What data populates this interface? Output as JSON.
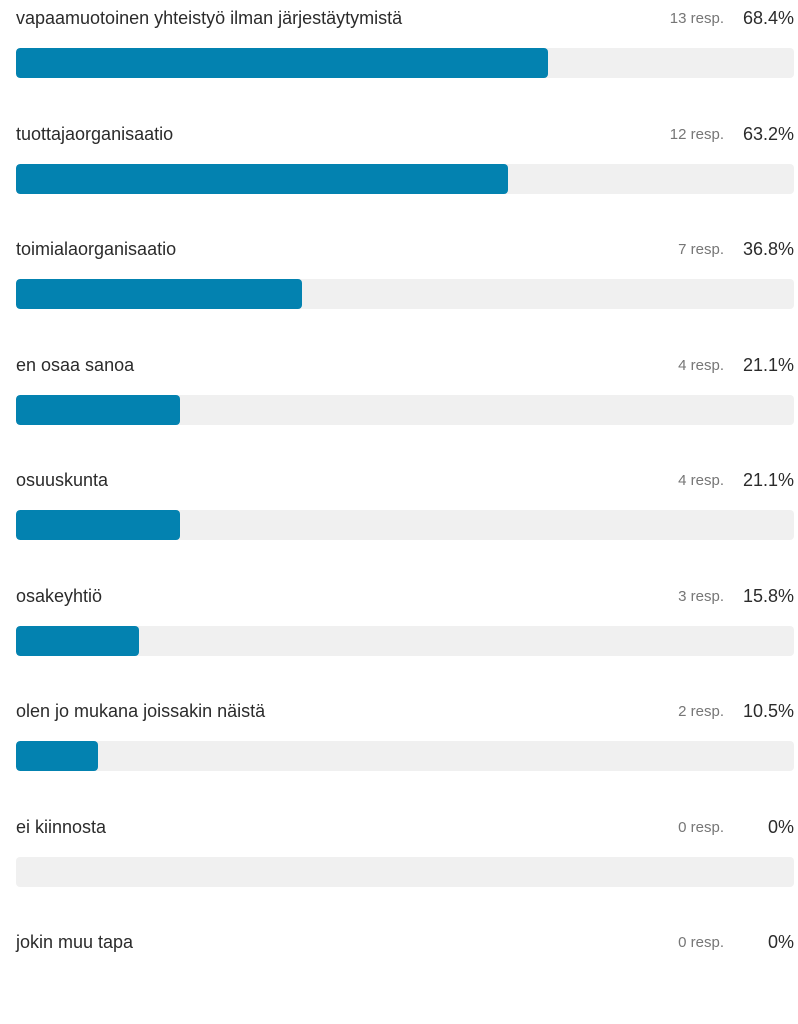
{
  "chart_data": {
    "type": "bar",
    "orientation": "horizontal",
    "bar_color": "#0382b0",
    "track_color": "#f0f0f0",
    "xlim": [
      0,
      100
    ],
    "options": [
      {
        "label": "vapaamuotoinen yhteistyö ilman järjestäytymistä",
        "responses": "13 resp.",
        "percent_label": "68.4%",
        "value": 68.4,
        "show_bar": true
      },
      {
        "label": "tuottajaorganisaatio",
        "responses": "12 resp.",
        "percent_label": "63.2%",
        "value": 63.2,
        "show_bar": true
      },
      {
        "label": "toimialaorganisaatio",
        "responses": "7 resp.",
        "percent_label": "36.8%",
        "value": 36.8,
        "show_bar": true
      },
      {
        "label": "en osaa sanoa",
        "responses": "4 resp.",
        "percent_label": "21.1%",
        "value": 21.1,
        "show_bar": true
      },
      {
        "label": "osuuskunta",
        "responses": "4 resp.",
        "percent_label": "21.1%",
        "value": 21.1,
        "show_bar": true
      },
      {
        "label": "osakeyhtiö",
        "responses": "3 resp.",
        "percent_label": "15.8%",
        "value": 15.8,
        "show_bar": true
      },
      {
        "label": "olen jo mukana joissakin näistä",
        "responses": "2 resp.",
        "percent_label": "10.5%",
        "value": 10.5,
        "show_bar": true
      },
      {
        "label": "ei kiinnosta",
        "responses": "0 resp.",
        "percent_label": "0%",
        "value": 0,
        "show_bar": true
      },
      {
        "label": "jokin muu tapa",
        "responses": "0 resp.",
        "percent_label": "0%",
        "value": 0,
        "show_bar": false
      }
    ]
  }
}
